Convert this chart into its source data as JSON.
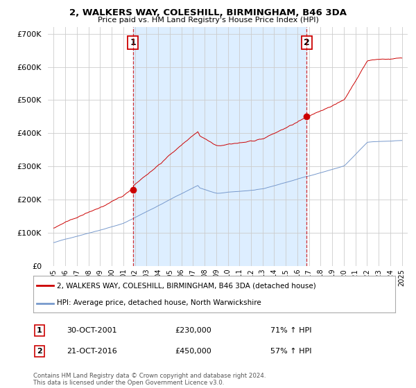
{
  "title": "2, WALKERS WAY, COLESHILL, BIRMINGHAM, B46 3DA",
  "subtitle": "Price paid vs. HM Land Registry's House Price Index (HPI)",
  "property_label": "2, WALKERS WAY, COLESHILL, BIRMINGHAM, B46 3DA (detached house)",
  "hpi_label": "HPI: Average price, detached house, North Warwickshire",
  "transaction1_date": "30-OCT-2001",
  "transaction1_price": 230000,
  "transaction1_pct": "71% ↑ HPI",
  "transaction1_x": 2001.83,
  "transaction2_date": "21-OCT-2016",
  "transaction2_price": 450000,
  "transaction2_pct": "57% ↑ HPI",
  "transaction2_x": 2016.8,
  "price_color": "#cc0000",
  "hpi_color": "#7799cc",
  "vline_color": "#cc0000",
  "shade_color": "#ddeeff",
  "background_color": "#ffffff",
  "grid_color": "#cccccc",
  "ylim": [
    0,
    720000
  ],
  "yticks": [
    0,
    100000,
    200000,
    300000,
    400000,
    500000,
    600000,
    700000
  ],
  "xlim": [
    1994.5,
    2025.5
  ],
  "footer": "Contains HM Land Registry data © Crown copyright and database right 2024.\nThis data is licensed under the Open Government Licence v3.0."
}
